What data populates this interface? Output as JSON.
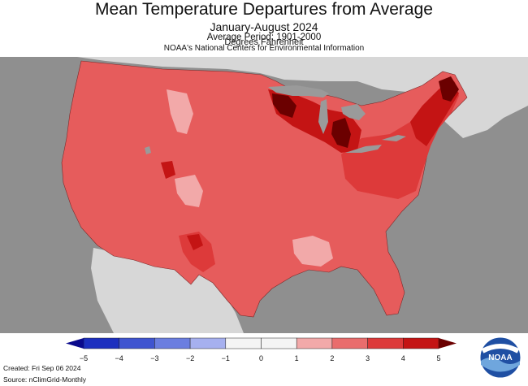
{
  "title": "Mean Temperature Departures from Average",
  "subtitle": "January-August 2024",
  "period": "Average Period: 1901-2000",
  "agency": "NOAA's National Centers for Environmental Information",
  "legend": {
    "units": "Degrees Fahrenheit",
    "ticks": [
      "−5",
      "−4",
      "−3",
      "−2",
      "−1",
      "0",
      "1",
      "2",
      "3",
      "4",
      "5"
    ],
    "bins": [
      {
        "range": "-5 to -4",
        "color": "#1c2fbf"
      },
      {
        "range": "-4 to -3",
        "color": "#3f54d0"
      },
      {
        "range": "-3 to -2",
        "color": "#6b7ee0"
      },
      {
        "range": "-2 to -1",
        "color": "#a6b0ef"
      },
      {
        "range": "-1 to 0",
        "color": "#f4f4f4"
      },
      {
        "range": "0 to 1",
        "color": "#f4f4f4"
      },
      {
        "range": "1 to 2",
        "color": "#f2a9a9"
      },
      {
        "range": "2 to 3",
        "color": "#e96d6d"
      },
      {
        "range": "3 to 4",
        "color": "#dd3a3a"
      },
      {
        "range": "4 to 5",
        "color": "#c41414"
      }
    ],
    "under_color": "#0a0a8c",
    "over_color": "#6b0000"
  },
  "footer": {
    "created": "Created: Fri Sep 06 2024",
    "source": "Source: nClimGrid-Monthly"
  },
  "logo": "NOAA",
  "colors": {
    "ocean": "#8f8f8f",
    "land_outside": "#d7d7d7",
    "base_anomaly": "#e65c5c",
    "warm": "#dd3a3a",
    "hot": "#c41414",
    "hottest": "#6b0000",
    "mild": "#f2a9a9",
    "lakes": "#9a9a9a"
  }
}
